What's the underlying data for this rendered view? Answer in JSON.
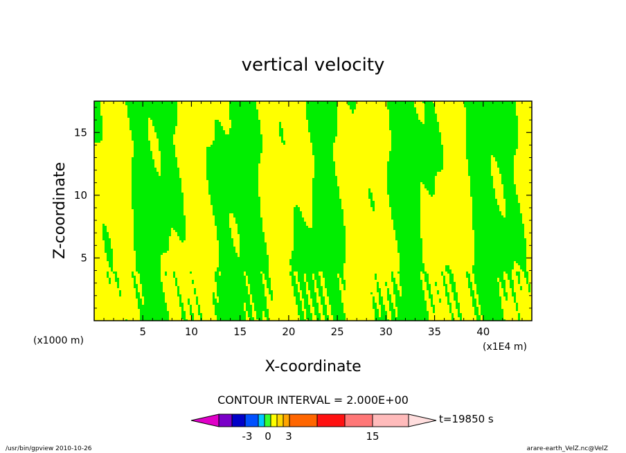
{
  "chart_data": {
    "type": "heatmap",
    "title": "vertical velocity",
    "xlabel": "X-coordinate",
    "ylabel": "Z-coordinate",
    "x_unit_left": "(x1000 m)",
    "x_unit_right": "(x1E4 m)",
    "xlim": [
      0,
      45
    ],
    "ylim": [
      0,
      17.5
    ],
    "x_ticks": [
      "5",
      "10",
      "15",
      "20",
      "25",
      "30",
      "35",
      "40"
    ],
    "y_ticks": [
      "5",
      "10",
      "15"
    ],
    "contour_interval_label": "CONTOUR INTERVAL = 2.000E+00",
    "time_label": "t=19850 s",
    "colorbar_labels": [
      "-3",
      "0",
      "3",
      "15"
    ],
    "colorbar_colors": [
      "#e000c8",
      "#7a00c8",
      "#0000c8",
      "#0050ff",
      "#00c8ff",
      "#33ff33",
      "#ffff00",
      "#ffd700",
      "#ffa500",
      "#ff6600",
      "#ff1111",
      "#ff7777",
      "#ffbbbb",
      "#ffdede"
    ],
    "field_colors": {
      "positive": "#ffff00",
      "negative": "#00ee00"
    },
    "footer_left": "/usr/bin/gpview   2010-10-26",
    "footer_right": "arare-earth_VelZ.nc@VelZ"
  }
}
